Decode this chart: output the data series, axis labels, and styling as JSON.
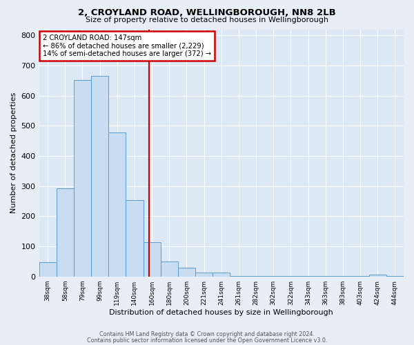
{
  "title": "2, CROYLAND ROAD, WELLINGBOROUGH, NN8 2LB",
  "subtitle": "Size of property relative to detached houses in Wellingborough",
  "xlabel": "Distribution of detached houses by size in Wellingborough",
  "ylabel": "Number of detached properties",
  "bar_labels": [
    "38sqm",
    "58sqm",
    "79sqm",
    "99sqm",
    "119sqm",
    "140sqm",
    "160sqm",
    "180sqm",
    "200sqm",
    "221sqm",
    "241sqm",
    "261sqm",
    "282sqm",
    "302sqm",
    "322sqm",
    "343sqm",
    "363sqm",
    "383sqm",
    "403sqm",
    "424sqm",
    "444sqm"
  ],
  "bar_heights": [
    47,
    293,
    651,
    665,
    477,
    253,
    113,
    49,
    28,
    14,
    13,
    2,
    2,
    2,
    2,
    2,
    2,
    2,
    2,
    6,
    2
  ],
  "bar_color": "#c8ddf2",
  "bar_edge_color": "#5b9bd5",
  "vline_color": "#cc0000",
  "annotation_title": "2 CROYLAND ROAD: 147sqm",
  "annotation_line1": "← 86% of detached houses are smaller (2,229)",
  "annotation_line2": "14% of semi-detached houses are larger (372) →",
  "annotation_box_color": "#cc0000",
  "ylim": [
    0,
    820
  ],
  "yticks": [
    0,
    100,
    200,
    300,
    400,
    500,
    600,
    700,
    800
  ],
  "footer1": "Contains HM Land Registry data © Crown copyright and database right 2024.",
  "footer2": "Contains public sector information licensed under the Open Government Licence v3.0.",
  "bg_color": "#e8eef5",
  "plot_bg_color": "#dce8f4"
}
